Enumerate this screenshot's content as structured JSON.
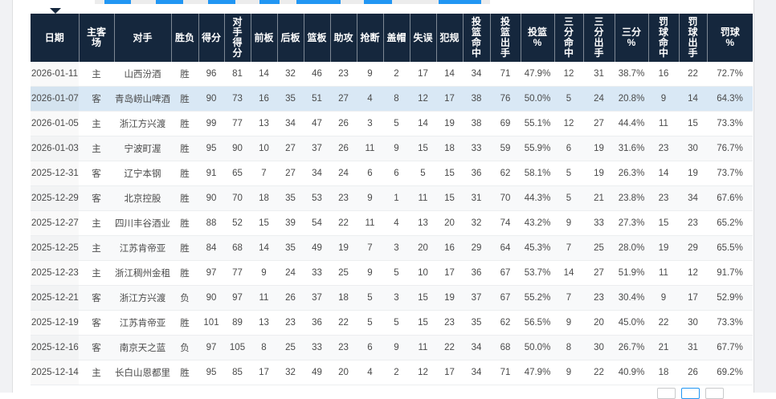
{
  "colors": {
    "header_bg": "#15273d",
    "accent_blue": "#2196f3",
    "highlight_row_bg": "#d9e8f5",
    "zebra_row_bg": "#f8f9fa",
    "body_text": "#4a4a4a"
  },
  "table": {
    "columns": [
      {
        "key": "date",
        "label": "日期"
      },
      {
        "key": "venue",
        "label": "主客\n场"
      },
      {
        "key": "opponent",
        "label": "对手"
      },
      {
        "key": "result",
        "label": "胜负"
      },
      {
        "key": "points",
        "label": "得分"
      },
      {
        "key": "opp_points",
        "label": "对\n手\n得\n分"
      },
      {
        "key": "off_reb",
        "label": "前板"
      },
      {
        "key": "def_reb",
        "label": "后板"
      },
      {
        "key": "reb",
        "label": "篮板"
      },
      {
        "key": "ast",
        "label": "助攻"
      },
      {
        "key": "stl",
        "label": "抢断"
      },
      {
        "key": "blk",
        "label": "盖帽"
      },
      {
        "key": "tov",
        "label": "失误"
      },
      {
        "key": "pf",
        "label": "犯规"
      },
      {
        "key": "fgm",
        "label": "投\n篮\n命\n中"
      },
      {
        "key": "fga",
        "label": "投\n篮\n出\n手"
      },
      {
        "key": "fg_pct",
        "label": "投篮\n%"
      },
      {
        "key": "tpm",
        "label": "三\n分\n命\n中"
      },
      {
        "key": "tpa",
        "label": "三\n分\n出\n手"
      },
      {
        "key": "tp_pct",
        "label": "三分\n%"
      },
      {
        "key": "ftm",
        "label": "罚\n球\n命\n中"
      },
      {
        "key": "fta",
        "label": "罚\n球\n出\n手"
      },
      {
        "key": "ft_pct",
        "label": "罚球\n%"
      }
    ],
    "highlighted_row": 1,
    "rows": [
      [
        "2026-01-11",
        "主",
        "山西汾酒",
        "胜",
        "96",
        "81",
        "14",
        "32",
        "46",
        "23",
        "9",
        "2",
        "17",
        "14",
        "34",
        "71",
        "47.9%",
        "12",
        "31",
        "38.7%",
        "16",
        "22",
        "72.7%"
      ],
      [
        "2026-01-07",
        "客",
        "青岛崂山啤酒",
        "胜",
        "90",
        "73",
        "16",
        "35",
        "51",
        "27",
        "4",
        "8",
        "12",
        "17",
        "38",
        "76",
        "50.0%",
        "5",
        "24",
        "20.8%",
        "9",
        "14",
        "64.3%"
      ],
      [
        "2026-01-05",
        "主",
        "浙江方兴渡",
        "胜",
        "99",
        "77",
        "13",
        "34",
        "47",
        "26",
        "3",
        "5",
        "14",
        "19",
        "38",
        "69",
        "55.1%",
        "12",
        "27",
        "44.4%",
        "11",
        "15",
        "73.3%"
      ],
      [
        "2026-01-03",
        "主",
        "宁波町渥",
        "胜",
        "95",
        "90",
        "10",
        "27",
        "37",
        "26",
        "11",
        "9",
        "15",
        "18",
        "33",
        "59",
        "55.9%",
        "6",
        "19",
        "31.6%",
        "23",
        "30",
        "76.7%"
      ],
      [
        "2025-12-31",
        "客",
        "辽宁本钢",
        "胜",
        "91",
        "65",
        "7",
        "27",
        "34",
        "24",
        "6",
        "6",
        "5",
        "15",
        "36",
        "62",
        "58.1%",
        "5",
        "19",
        "26.3%",
        "14",
        "19",
        "73.7%"
      ],
      [
        "2025-12-29",
        "客",
        "北京控股",
        "胜",
        "90",
        "70",
        "18",
        "35",
        "53",
        "23",
        "9",
        "1",
        "11",
        "15",
        "31",
        "70",
        "44.3%",
        "5",
        "21",
        "23.8%",
        "23",
        "34",
        "67.6%"
      ],
      [
        "2025-12-27",
        "主",
        "四川丰谷酒业",
        "胜",
        "88",
        "52",
        "15",
        "39",
        "54",
        "22",
        "11",
        "4",
        "13",
        "20",
        "32",
        "74",
        "43.2%",
        "9",
        "33",
        "27.3%",
        "15",
        "23",
        "65.2%"
      ],
      [
        "2025-12-25",
        "主",
        "江苏肯帝亚",
        "胜",
        "84",
        "68",
        "14",
        "35",
        "49",
        "19",
        "7",
        "3",
        "20",
        "16",
        "29",
        "64",
        "45.3%",
        "7",
        "25",
        "28.0%",
        "19",
        "29",
        "65.5%"
      ],
      [
        "2025-12-23",
        "主",
        "浙江稠州金租",
        "胜",
        "97",
        "77",
        "9",
        "24",
        "33",
        "25",
        "9",
        "5",
        "10",
        "17",
        "36",
        "67",
        "53.7%",
        "14",
        "27",
        "51.9%",
        "11",
        "12",
        "91.7%"
      ],
      [
        "2025-12-21",
        "客",
        "浙江方兴渡",
        "负",
        "90",
        "97",
        "11",
        "26",
        "37",
        "18",
        "5",
        "3",
        "15",
        "19",
        "37",
        "67",
        "55.2%",
        "7",
        "23",
        "30.4%",
        "9",
        "17",
        "52.9%"
      ],
      [
        "2025-12-19",
        "客",
        "江苏肯帝亚",
        "胜",
        "101",
        "89",
        "13",
        "23",
        "36",
        "22",
        "5",
        "5",
        "15",
        "23",
        "35",
        "62",
        "56.5%",
        "9",
        "20",
        "45.0%",
        "22",
        "30",
        "73.3%"
      ],
      [
        "2025-12-16",
        "客",
        "南京天之蓝",
        "负",
        "97",
        "105",
        "8",
        "25",
        "33",
        "23",
        "6",
        "9",
        "11",
        "22",
        "34",
        "68",
        "50.0%",
        "8",
        "30",
        "26.7%",
        "21",
        "31",
        "67.7%"
      ],
      [
        "2025-12-14",
        "主",
        "长白山恩都里",
        "胜",
        "95",
        "85",
        "17",
        "32",
        "49",
        "20",
        "4",
        "2",
        "12",
        "17",
        "34",
        "71",
        "47.9%",
        "9",
        "22",
        "40.9%",
        "18",
        "26",
        "69.2%"
      ]
    ]
  }
}
